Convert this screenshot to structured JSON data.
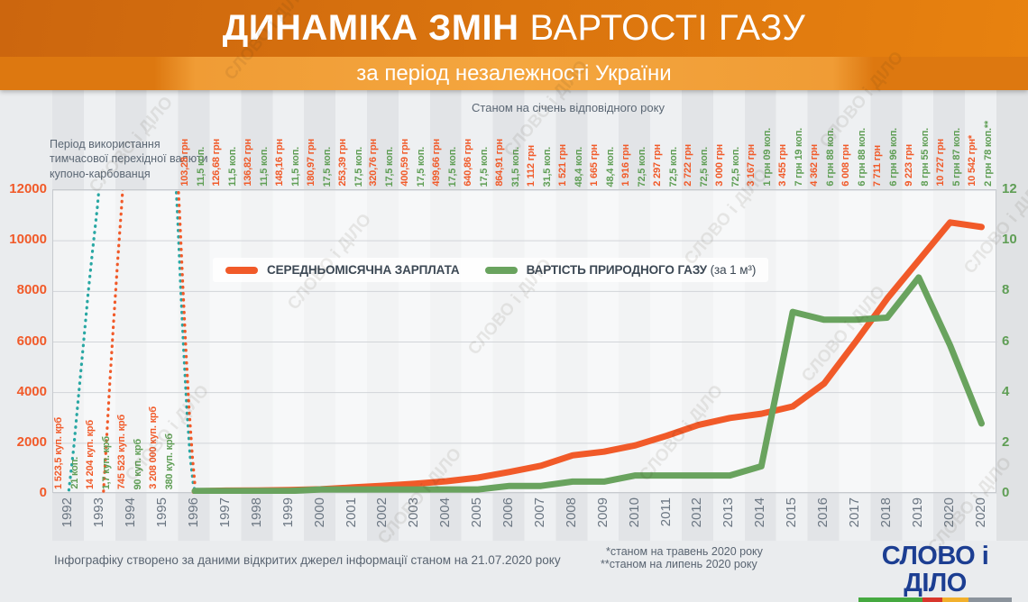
{
  "header": {
    "title_bold": "ДИНАМІКА ЗМІН",
    "title_rest": "ВАРТОСТІ ГАЗУ",
    "subtitle": "за період незалежності України"
  },
  "annotations": {
    "as_of": "Станом на січень відповідного року",
    "kupon_note": "Період використання тимчасової перехідної валюти купоно-карбованця",
    "source": "Інфографіку створено за даними відкритих джерел інформації станом на 21.07.2020 року",
    "footnote1": "*станом на травень 2020 року",
    "footnote2": "**станом на липень 2020 року"
  },
  "legend": {
    "salary": "СЕРЕДНЬОМІСЯЧНА ЗАРПЛАТА",
    "gas": "ВАРТІСТЬ ПРИРОДНОГО ГАЗУ",
    "gas_suffix": "(за 1 м³)"
  },
  "logo": {
    "text": "СЛОВО і ДІЛО"
  },
  "colors": {
    "salary": "#f15a29",
    "gas": "#69a35e",
    "gas_axis": "#5f9e55",
    "offscale_teal": "#28a7a3",
    "header_orange": "#dd7810",
    "logo_blue": "#1c3e92"
  },
  "chart_data": {
    "type": "line",
    "title": "ДИНАМІКА ЗМІН ВАРТОСТІ ГАЗУ за період незалежності України",
    "categories": [
      "1992",
      "1993",
      "1994",
      "1995",
      "1996",
      "1997",
      "1998",
      "1999",
      "2000",
      "2001",
      "2002",
      "2003",
      "2004",
      "2005",
      "2006",
      "2007",
      "2008",
      "2009",
      "2010",
      "2011",
      "2012",
      "2013",
      "2014",
      "2015",
      "2016",
      "2017",
      "2018",
      "2019",
      "2020",
      "2020"
    ],
    "series": [
      {
        "name": "СЕРЕДНЬОМІСЯЧНА ЗАРПЛАТА",
        "axis": "left",
        "color": "#f15a29",
        "values": [
          null,
          null,
          null,
          null,
          103.28,
          126.68,
          136.82,
          148.16,
          180.97,
          253.39,
          320.76,
          400.59,
          499.66,
          640.86,
          864.91,
          1112,
          1521,
          1665,
          1916,
          2297,
          2722,
          3000,
          3167,
          3455,
          4362,
          6008,
          7711,
          9223,
          10727,
          10542
        ]
      },
      {
        "name": "ВАРТІСТЬ ПРИРОДНОГО ГАЗУ (за 1 м³)",
        "axis": "right",
        "color": "#69a35e",
        "values": [
          null,
          null,
          null,
          null,
          0.115,
          0.115,
          0.115,
          0.115,
          0.175,
          0.175,
          0.175,
          0.175,
          0.175,
          0.175,
          0.315,
          0.315,
          0.484,
          0.484,
          0.725,
          0.725,
          0.725,
          0.725,
          1.09,
          7.19,
          6.88,
          6.88,
          6.96,
          8.55,
          5.87,
          2.78
        ]
      }
    ],
    "value_labels": {
      "salary": [
        "1 523,5 куп. крб",
        "14 204 куп. крб",
        "745 523 куп. крб",
        "3 208 000 куп. крб",
        "103,28 грн",
        "126,68 грн",
        "136,82 грн",
        "148,16 грн",
        "180,97 грн",
        "253,39 грн",
        "320,76 грн",
        "400,59 грн",
        "499,66 грн",
        "640,86 грн",
        "864,91 грн",
        "1 112 грн",
        "1 521 грн",
        "1 665 грн",
        "1 916 грн",
        "2 297 грн",
        "2 722 грн",
        "3 000 грн",
        "3 167 грн",
        "3 455 грн",
        "4 362 грн",
        "6 008 грн",
        "7 711 грн",
        "9 223 грн",
        "10 727 грн",
        "10 542 грн*"
      ],
      "gas": [
        "21 коп.",
        "1,7 куп. крб",
        "90 куп. крб",
        "380 куп. крб",
        "11,5 коп.",
        "11,5 коп.",
        "11,5 коп.",
        "11,5 коп.",
        "17,5 коп.",
        "17,5 коп.",
        "17,5 коп.",
        "17,5 коп.",
        "17,5 коп.",
        "17,5 коп.",
        "31,5 коп.",
        "31,5 коп.",
        "48,4 коп.",
        "48,4 коп.",
        "72,5 коп.",
        "72,5 коп.",
        "72,5 коп.",
        "72,5 коп.",
        "1 грн 09 коп.",
        "7 грн 19 коп.",
        "6 грн 88 коп.",
        "6 грн 88 коп.",
        "6 грн 96 коп.",
        "8 грн 55 коп.",
        "5 грн 87 коп.",
        "2 грн 78 коп.**"
      ]
    },
    "axis_left": {
      "ticks": [
        0,
        2000,
        4000,
        6000,
        8000,
        10000,
        12000
      ],
      "max": 12000,
      "color": "#f15a29"
    },
    "axis_right": {
      "ticks": [
        0,
        2,
        4,
        6,
        8,
        10,
        12
      ],
      "max": 12,
      "color": "#5f9e55"
    },
    "legend_position": "inside-top-left",
    "grid": true
  },
  "offscale_paths": [
    {
      "color": "#28a7a3",
      "points": [
        [
          0,
          150
        ],
        [
          0.15,
          1800
        ],
        [
          0.3,
          3800
        ],
        [
          0.45,
          5800
        ],
        [
          0.6,
          7800
        ],
        [
          0.75,
          9600
        ],
        [
          0.9,
          11300
        ],
        [
          1.05,
          13400
        ]
      ]
    },
    {
      "color": "#f15a29",
      "points": [
        [
          1.1,
          100
        ],
        [
          1.2,
          2200
        ],
        [
          1.3,
          4400
        ],
        [
          1.42,
          6800
        ],
        [
          1.55,
          9200
        ],
        [
          1.67,
          11300
        ],
        [
          1.78,
          13400
        ]
      ]
    },
    {
      "color": "#28a7a3",
      "points": [
        [
          3.35,
          13400
        ],
        [
          3.45,
          11000
        ],
        [
          3.55,
          8200
        ],
        [
          3.65,
          5600
        ],
        [
          3.75,
          3300
        ],
        [
          3.85,
          1500
        ],
        [
          3.95,
          400
        ],
        [
          4.0,
          130
        ]
      ]
    },
    {
      "color": "#f15a29",
      "points": [
        [
          3.42,
          13400
        ],
        [
          3.52,
          11000
        ],
        [
          3.62,
          8200
        ],
        [
          3.72,
          5600
        ],
        [
          3.82,
          3300
        ],
        [
          3.92,
          1500
        ],
        [
          4.0,
          420
        ]
      ]
    }
  ],
  "watermark": {
    "text": "СЛОВО і ДІЛО"
  }
}
